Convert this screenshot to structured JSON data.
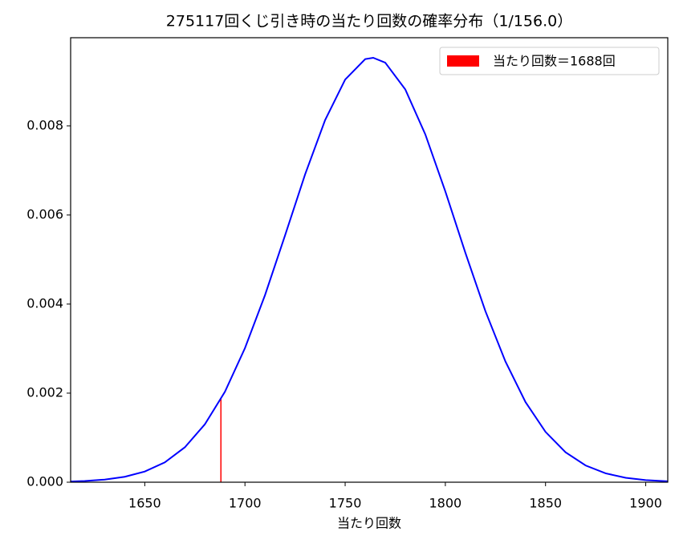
{
  "chart_data": {
    "type": "line",
    "title": "275117回くじ引き時の当たり回数の確率分布（1/156.0）",
    "x_label": "当たり回数",
    "x": [
      1613,
      1620,
      1630,
      1640,
      1650,
      1660,
      1670,
      1680,
      1690,
      1700,
      1710,
      1720,
      1730,
      1740,
      1750,
      1760,
      1764,
      1770,
      1780,
      1790,
      1800,
      1810,
      1820,
      1830,
      1840,
      1850,
      1860,
      1870,
      1880,
      1890,
      1900,
      1911
    ],
    "values": [
      1.48e-05,
      2.66e-05,
      5.86e-05,
      0.000122,
      0.00024,
      0.000446,
      0.000784,
      0.0013,
      0.00203,
      0.00301,
      0.0042,
      0.00554,
      0.00691,
      0.00813,
      0.00904,
      0.0095,
      0.00953,
      0.00942,
      0.00882,
      0.00781,
      0.00653,
      0.00515,
      0.00384,
      0.00271,
      0.0018,
      0.00113,
      0.000671,
      0.000376,
      0.000199,
      9.96e-05,
      4.71e-05,
      1.93e-05
    ],
    "color": "#0000ff",
    "bar": {
      "name": "当たり回数＝1688回",
      "x": 1688,
      "value": 0.0019,
      "color": "#ff0000"
    },
    "xlim": [
      1613,
      1911
    ],
    "ylim": [
      0,
      0.00998
    ],
    "xticks": [
      1650,
      1700,
      1750,
      1800,
      1850,
      1900
    ],
    "yticks": [
      {
        "value": 0,
        "label": "0.000"
      },
      {
        "value": 0.002,
        "label": "0.002"
      },
      {
        "value": 0.004,
        "label": "0.004"
      },
      {
        "value": 0.006,
        "label": "0.006"
      },
      {
        "value": 0.008,
        "label": "0.008"
      }
    ],
    "legend": "upper right"
  }
}
